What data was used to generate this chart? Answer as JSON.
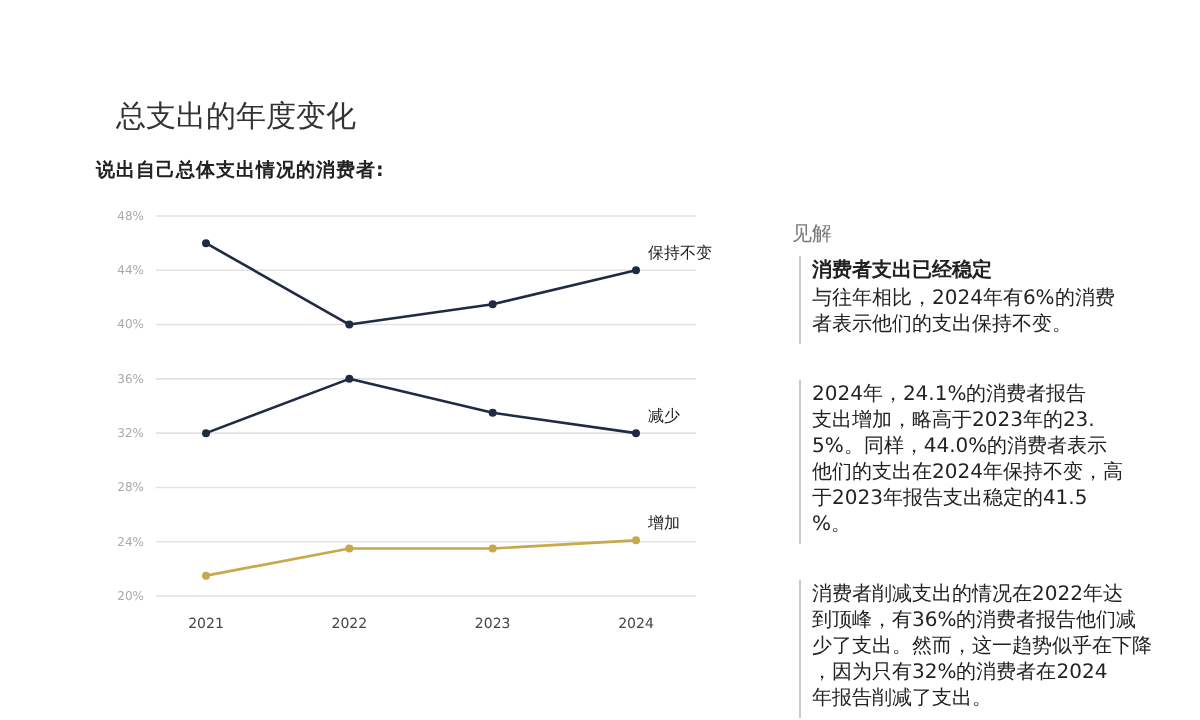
{
  "chart_data": {
    "type": "line",
    "title": "总支出的年度变化",
    "subtitle": "说出自己总体支出情况的消费者:",
    "categories": [
      "2021",
      "2022",
      "2023",
      "2024"
    ],
    "series": [
      {
        "name": "保持不变",
        "color": "#1f2a44",
        "values": [
          46,
          40,
          41.5,
          44.0
        ]
      },
      {
        "name": "减少",
        "color": "#1f2a44",
        "values": [
          32,
          36,
          33.5,
          32
        ]
      },
      {
        "name": "增加",
        "color": "#c8a84a",
        "values": [
          21.5,
          23.5,
          23.5,
          24.1
        ]
      }
    ],
    "ylim": [
      20,
      48
    ],
    "yticks": [
      {
        "value": 20,
        "label": "20%"
      },
      {
        "value": 24,
        "label": "24%"
      },
      {
        "value": 28,
        "label": "28%"
      },
      {
        "value": 32,
        "label": "32%"
      },
      {
        "value": 36,
        "label": "36%"
      },
      {
        "value": 40,
        "label": "40%"
      },
      {
        "value": 44,
        "label": "44%"
      },
      {
        "value": 48,
        "label": "48%"
      }
    ],
    "grid": "y",
    "marker": "circle",
    "line_style": "solid",
    "annotations": [
      "见解",
      "消费者支出已经稳定",
      "与往年相比，2024年有6%的消费者表示他们的支出保持不变。",
      "2024年，24.1%的消费者报告支出增加，略高于2023年的23.5%。同样，44.0%的消费者表示他们的支出在2024年保持不变，高于2023年报告支出稳定的41.5%。",
      "消费者削减支出的情况在2022年达到顶峰，有36%的消费者报告他们减少了支出。然而，这一趋势似乎在下降，因为只有32%的消费者在2024年报告削减了支出。"
    ]
  }
}
